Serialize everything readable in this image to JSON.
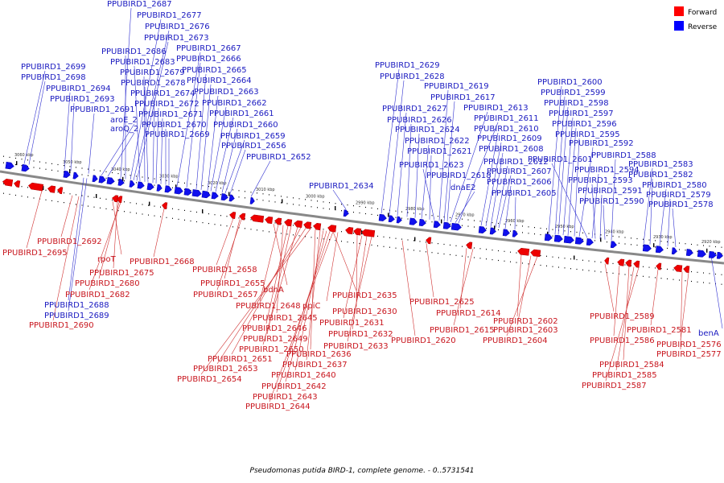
{
  "title": "Pseudomonas putida BIRD-1, complete genome. - 0..5731541",
  "legend": [
    {
      "label": "Forward",
      "color": "#ff0000"
    },
    {
      "label": "Reverse",
      "color": "#0000ff"
    }
  ],
  "scale_labels": [
    "3060 kbp",
    "3050 kbp",
    "3040 kbp",
    "3030 kbp",
    "3020 kbp",
    "3010 kbp",
    "3000 kbp",
    "2990 kbp",
    "2980 kbp",
    "2970 kbp",
    "2960 kbp",
    "2950 kbp",
    "2940 kbp",
    "2930 kbp",
    "2920 kbp"
  ],
  "reverse_labels_top": [
    "PPUBIRD1_2699",
    "PPUBIRD1_2698",
    "PPUBIRD1_2694",
    "PPUBIRD1_2693",
    "PPUBIRD1_2691",
    "aroE_2",
    "aroQ_2",
    "PPUBIRD1_2687",
    "PPUBIRD1_2677",
    "PPUBIRD1_2676",
    "PPUBIRD1_2673",
    "PPUBIRD1_2686",
    "PPUBIRD1_2683",
    "PPUBIRD1_2679",
    "PPUBIRD1_2678",
    "PPUBIRD1_2674",
    "PPUBIRD1_2672",
    "PPUBIRD1_2671",
    "PPUBIRD1_2670",
    "PPUBIRD1_2669",
    "PPUBIRD1_2667",
    "PPUBIRD1_2666",
    "PPUBIRD1_2665",
    "PPUBIRD1_2664",
    "PPUBIRD1_2663",
    "PPUBIRD1_2662",
    "PPUBIRD1_2661",
    "PPUBIRD1_2660",
    "PPUBIRD1_2659",
    "PPUBIRD1_2656",
    "PPUBIRD1_2652",
    "PPUBIRD1_2634",
    "PPUBIRD1_2629",
    "PPUBIRD1_2628",
    "PPUBIRD1_2627",
    "PPUBIRD1_2626",
    "PPUBIRD1_2624",
    "PPUBIRD1_2622",
    "PPUBIRD1_2621",
    "PPUBIRD1_2623",
    "PPUBIRD1_2619",
    "PPUBIRD1_2617",
    "PPUBIRD1_2613",
    "PPUBIRD1_2611",
    "PPUBIRD1_2610",
    "PPUBIRD1_2609",
    "PPUBIRD1_2608",
    "PPUBIRD1_2618",
    "dnaE2",
    "PPUBIRD1_2612",
    "PPUBIRD1_2607",
    "PPUBIRD1_2606",
    "PPUBIRD1_2605",
    "PPUBIRD1_2600",
    "PPUBIRD1_2599",
    "PPUBIRD1_2598",
    "PPUBIRD1_2597",
    "PPUBIRD1_2596",
    "PPUBIRD1_2595",
    "PPUBIRD1_2592",
    "PPUBIRD1_2601",
    "PPUBIRD1_2594",
    "PPUBIRD1_2593",
    "PPUBIRD1_2591",
    "PPUBIRD1_2590",
    "PPUBIRD1_2588",
    "PPUBIRD1_2583",
    "PPUBIRD1_2582",
    "PPUBIRD1_2580",
    "PPUBIRD1_2579",
    "PPUBIRD1_2578"
  ],
  "reverse_labels_bottom": [
    "PPUBIRD1_2688",
    "PPUBIRD1_2689",
    "benA"
  ],
  "forward_labels": [
    "PPUBIRD1_2692",
    "PPUBIRD1_2695",
    "rpoT",
    "PPUBIRD1_2675",
    "PPUBIRD1_2680",
    "PPUBIRD1_2682",
    "PPUBIRD1_2690",
    "PPUBIRD1_2668",
    "PPUBIRD1_2658",
    "PPUBIRD1_2655",
    "PPUBIRD1_2657",
    "bdhA",
    "PPUBIRD1_2648",
    "PPUBIRD1_2645",
    "PPUBIRD1_2646",
    "PPUBIRD1_2649",
    "PPUBIRD1_2650",
    "PPUBIRD1_2651",
    "PPUBIRD1_2653",
    "PPUBIRD1_2654",
    "PPUBIRD1_2635",
    "ppiC",
    "PPUBIRD1_2630",
    "PPUBIRD1_2631",
    "PPUBIRD1_2632",
    "PPUBIRD1_2633",
    "PPUBIRD1_2636",
    "PPUBIRD1_2637",
    "PPUBIRD1_2640",
    "PPUBIRD1_2642",
    "PPUBIRD1_2643",
    "PPUBIRD1_2644",
    "PPUBIRD1_2625",
    "PPUBIRD1_2620",
    "PPUBIRD1_2614",
    "PPUBIRD1_2615",
    "PPUBIRD1_2602",
    "PPUBIRD1_2603",
    "PPUBIRD1_2604",
    "PPUBIRD1_2589",
    "PPUBIRD1_2586",
    "PPUBIRD1_2584",
    "PPUBIRD1_2585",
    "PPUBIRD1_2587",
    "PPUBIRD1_2581",
    "PPUBIRD1_2576",
    "PPUBIRD1_2577"
  ]
}
